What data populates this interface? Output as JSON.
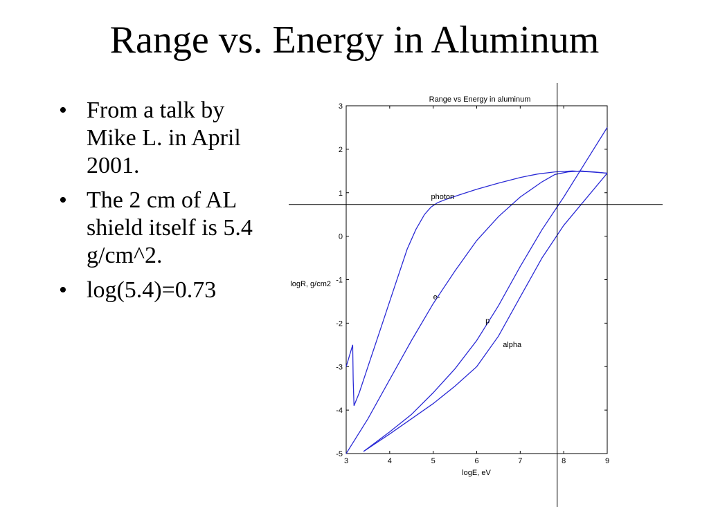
{
  "slide": {
    "title": "Range vs. Energy in Aluminum",
    "bullets": [
      "From a talk by Mike L. in April 2001.",
      "The 2 cm of AL shield itself is 5.4 g/cm^2.",
      "log(5.4)=0.73"
    ],
    "bullet_glyph": "•"
  },
  "chart_data": {
    "type": "line",
    "title": "Range vs Energy in aluminum",
    "xlabel": "logE, eV",
    "ylabel": "logR, g/cm2",
    "xlim": [
      3,
      9
    ],
    "ylim": [
      -5,
      3
    ],
    "xticks": [
      3,
      4,
      5,
      6,
      7,
      8,
      9
    ],
    "yticks": [
      -5,
      -4,
      -3,
      -2,
      -1,
      0,
      1,
      2,
      3
    ],
    "grid": false,
    "line_color": "#2b2bd6",
    "annotation_color": "#000000",
    "reference_lines": {
      "vertical_x": 7.85,
      "horizontal_y": 0.73
    },
    "series": [
      {
        "name": "photon",
        "x": [
          3.0,
          3.15,
          3.16,
          3.18,
          3.3,
          3.5,
          3.8,
          4.1,
          4.4,
          4.6,
          4.8,
          4.95,
          5.1,
          5.3,
          5.6,
          6.0,
          6.5,
          7.0,
          7.4,
          7.8,
          8.2,
          8.6,
          9.0
        ],
        "y": [
          -3.0,
          -2.5,
          -3.3,
          -3.9,
          -3.6,
          -3.0,
          -2.1,
          -1.2,
          -0.3,
          0.15,
          0.5,
          0.67,
          0.77,
          0.85,
          0.95,
          1.08,
          1.22,
          1.35,
          1.43,
          1.48,
          1.5,
          1.48,
          1.45
        ]
      },
      {
        "name": "e-",
        "x": [
          3.0,
          3.5,
          4.0,
          4.5,
          5.0,
          5.5,
          6.0,
          6.5,
          7.0,
          7.5,
          7.8,
          8.1,
          8.4,
          8.7,
          9.0
        ],
        "y": [
          -5.0,
          -4.2,
          -3.3,
          -2.4,
          -1.55,
          -0.8,
          -0.1,
          0.45,
          0.9,
          1.25,
          1.42,
          1.48,
          1.5,
          1.48,
          1.45
        ]
      },
      {
        "name": "p",
        "x": [
          3.4,
          4.0,
          4.5,
          5.0,
          5.5,
          6.0,
          6.5,
          7.0,
          7.5,
          8.0,
          8.5,
          9.0
        ],
        "y": [
          -4.95,
          -4.5,
          -4.1,
          -3.6,
          -3.05,
          -2.4,
          -1.6,
          -0.7,
          0.15,
          0.9,
          1.7,
          2.5
        ]
      },
      {
        "name": "alpha",
        "x": [
          3.4,
          4.0,
          4.5,
          5.0,
          5.5,
          6.0,
          6.5,
          7.0,
          7.5,
          8.0,
          8.5,
          9.0
        ],
        "y": [
          -4.95,
          -4.55,
          -4.2,
          -3.85,
          -3.45,
          -3.0,
          -2.3,
          -1.4,
          -0.5,
          0.25,
          0.85,
          1.45
        ]
      }
    ],
    "curve_labels": [
      {
        "text": "photon",
        "x": 4.95,
        "y": 0.85
      },
      {
        "text": "e-",
        "x": 5.0,
        "y": -1.45
      },
      {
        "text": "p",
        "x": 6.2,
        "y": -2.0
      },
      {
        "text": "alpha",
        "x": 6.6,
        "y": -2.55
      }
    ]
  }
}
